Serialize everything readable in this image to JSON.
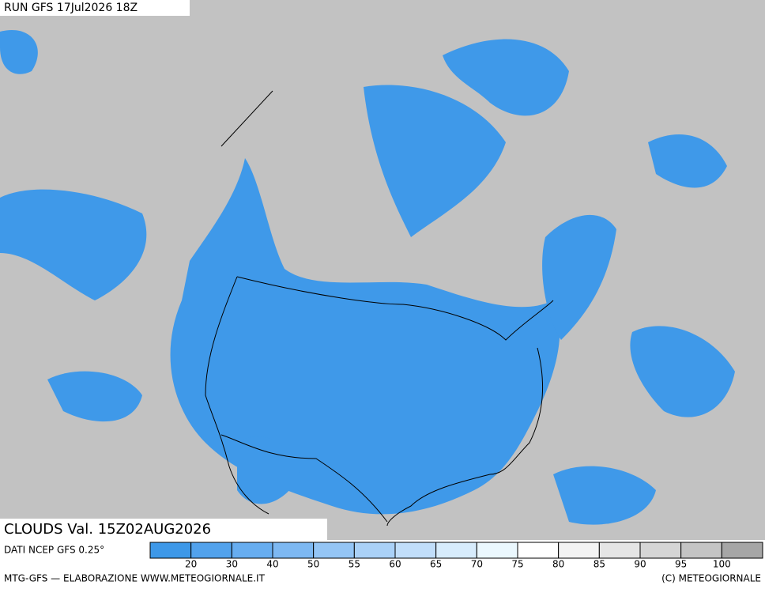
{
  "header": {
    "run": "RUN GFS 17Jul2026 18Z"
  },
  "title": "CLOUDS Val. 15Z02AUG2026",
  "legend": {
    "source": "DATI NCEP GFS 0.25°",
    "colors": [
      "#3d98e8",
      "#52a2ec",
      "#67adf0",
      "#7db8f2",
      "#94c5f5",
      "#aad1f7",
      "#c1defa",
      "#d7ecfc",
      "#ebf8fe",
      "#ffffff",
      "#f3f3f3",
      "#e5e5e5",
      "#d5d5d5",
      "#c4c4c4",
      "#a6a6a6"
    ],
    "labels": [
      20,
      30,
      40,
      50,
      55,
      60,
      65,
      70,
      75,
      80,
      85,
      90,
      95,
      100
    ]
  },
  "footer": {
    "left": "MTG-GFS — ELABORAZIONE WWW.METEOGIORNALE.IT",
    "right": "(C) METEOGIORNALE"
  }
}
